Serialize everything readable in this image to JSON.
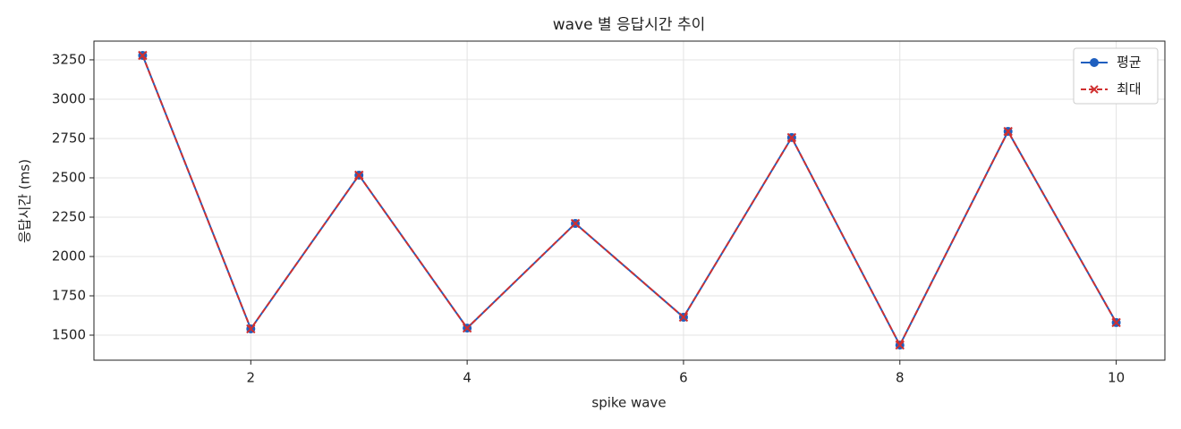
{
  "chart_data": {
    "type": "line",
    "title": "wave 별 응답시간 추이",
    "x_label": "spike wave",
    "y_label": "응답시간 (ms)",
    "x": [
      1,
      2,
      3,
      4,
      5,
      6,
      7,
      8,
      9,
      10
    ],
    "series": [
      {
        "name": "평균",
        "color": "#1f5fbf",
        "marker": "circle",
        "dash": false,
        "values": [
          3278,
          1540,
          2517,
          1545,
          2210,
          1614,
          2756,
          1437,
          2795,
          1580
        ]
      },
      {
        "name": "최대",
        "color": "#d03030",
        "marker": "x",
        "dash": true,
        "values": [
          3278,
          1540,
          2517,
          1545,
          2210,
          1614,
          2756,
          1437,
          2795,
          1580
        ]
      }
    ],
    "xlim": [
      0.55,
      10.45
    ],
    "xticks": [
      2,
      4,
      6,
      8,
      10
    ],
    "ylim": [
      1341,
      3369
    ],
    "yticks": [
      1500,
      1750,
      2000,
      2250,
      2500,
      2750,
      3000,
      3250
    ],
    "grid": true,
    "legend": "upper right"
  }
}
